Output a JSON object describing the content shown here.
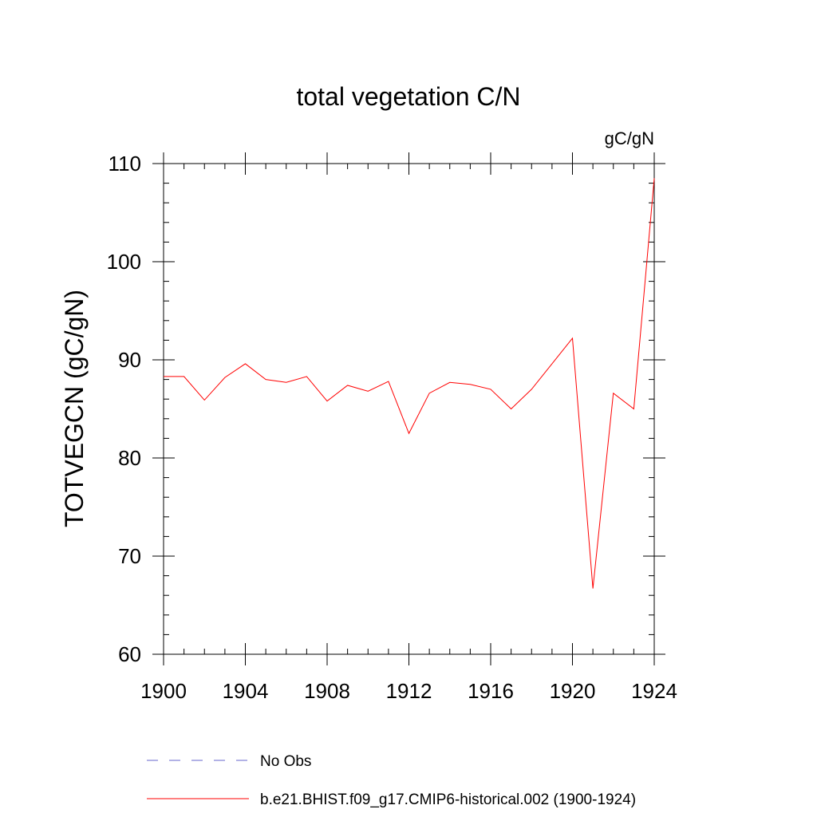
{
  "chart_data": {
    "type": "line",
    "title": "total vegetation C/N",
    "units_label": "gC/gN",
    "xlabel": "",
    "ylabel": "TOTVEGCN  (gC/gN)",
    "xlim": [
      1900,
      1924
    ],
    "ylim": [
      60,
      110
    ],
    "x_ticks": [
      1900,
      1904,
      1908,
      1912,
      1916,
      1920,
      1924
    ],
    "y_ticks": [
      60,
      70,
      80,
      90,
      100,
      110
    ],
    "x_minor_step": 1,
    "y_minor_step": 2,
    "grid": false,
    "x": [
      1900,
      1901,
      1902,
      1903,
      1904,
      1905,
      1906,
      1907,
      1908,
      1909,
      1910,
      1911,
      1912,
      1913,
      1914,
      1915,
      1916,
      1917,
      1918,
      1919,
      1920,
      1921,
      1922,
      1923,
      1924
    ],
    "series": [
      {
        "name": "b.e21.BHIST.f09_g17.CMIP6-historical.002 (1900-1924)",
        "color": "#ff0000",
        "style": "solid",
        "values": [
          88.3,
          88.3,
          85.9,
          88.2,
          89.6,
          88.0,
          87.7,
          88.3,
          85.8,
          87.4,
          86.8,
          87.8,
          82.5,
          86.6,
          87.7,
          87.5,
          87.0,
          85.0,
          87.0,
          89.6,
          92.2,
          66.7,
          86.6,
          85.0,
          108.5
        ]
      }
    ],
    "legend": {
      "placement": "bottom",
      "entries": [
        {
          "label": "No Obs",
          "color": "#6666cc",
          "style": "dashed"
        },
        {
          "label": "b.e21.BHIST.f09_g17.CMIP6-historical.002 (1900-1924)",
          "color": "#ff0000",
          "style": "solid"
        }
      ]
    }
  }
}
